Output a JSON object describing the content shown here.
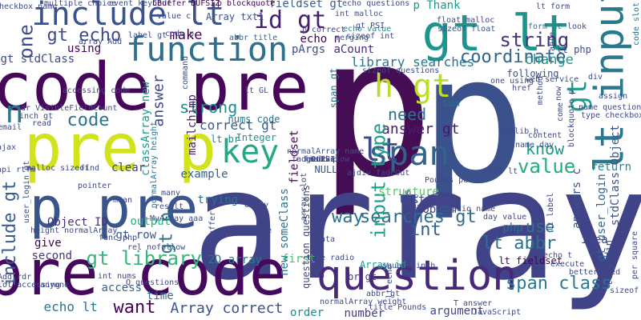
{
  "words": [
    {
      "text": "p",
      "color": "#450d54"
    },
    {
      "text": "p",
      "color": "#3b518b"
    },
    {
      "text": "array",
      "color": "#404387"
    },
    {
      "text": "code pre",
      "color": "#46075a"
    },
    {
      "text": "pre code",
      "color": "#46085c"
    },
    {
      "text": "pre p",
      "color": "#d2e21b"
    },
    {
      "text": "p pre",
      "color": "#3a548c"
    },
    {
      "text": "question",
      "color": "#482979"
    },
    {
      "text": "include lt",
      "color": "#3b528b"
    },
    {
      "text": "gt lt",
      "color": "#1f948c"
    },
    {
      "text": "lt input",
      "color": "#2a788e"
    },
    {
      "text": "span",
      "color": "#33628d"
    },
    {
      "text": "function",
      "color": "#2d718e"
    },
    {
      "text": "key",
      "color": "#22a884"
    },
    {
      "text": "lt",
      "color": "#3e4a89"
    },
    {
      "text": "n",
      "color": "#2a768e"
    },
    {
      "text": "h gt",
      "color": "#b8de29"
    },
    {
      "text": "id gt",
      "color": "#481f70"
    },
    {
      "text": "string",
      "color": "#46327e"
    },
    {
      "text": "coordinate",
      "color": "#31668e"
    },
    {
      "text": "gt echo",
      "color": "#3e4a89"
    },
    {
      "text": "gt",
      "color": "#1e9b8a"
    },
    {
      "text": "code",
      "color": "#2c728e"
    },
    {
      "text": "answer gt",
      "color": "#481a6c"
    },
    {
      "text": "value",
      "color": "#25ab82"
    },
    {
      "text": "searches gt",
      "color": "#2e6e8e"
    },
    {
      "text": "lt abbr",
      "color": "#2c718e"
    },
    {
      "text": "span class",
      "color": "#287c8e"
    },
    {
      "text": "gt library",
      "color": "#35b779"
    },
    {
      "text": "input type",
      "color": "#1f9e89"
    },
    {
      "text": "want",
      "color": "#440154"
    },
    {
      "text": "way",
      "color": "#2d708e"
    },
    {
      "text": "int",
      "color": "#33638d"
    },
    {
      "text": "use",
      "color": "#2b758e"
    },
    {
      "text": "know",
      "color": "#1f978b"
    },
    {
      "text": "need",
      "color": "#2c728e"
    },
    {
      "text": "change",
      "color": "#1f968b"
    },
    {
      "text": "make",
      "color": "#440154"
    },
    {
      "text": "one",
      "color": "#3e4c8a"
    },
    {
      "text": "strong",
      "color": "#228c8d"
    },
    {
      "text": "correct gt",
      "color": "#365c8d"
    },
    {
      "text": "Array correct",
      "color": "#3b528b"
    },
    {
      "text": "p Thank",
      "color": "#1e9b8a"
    },
    {
      "text": "echo lt",
      "color": "#2a768e"
    },
    {
      "text": "gt row",
      "color": "#3a548c"
    },
    {
      "text": "gt n",
      "color": "#2d708e"
    },
    {
      "text": "include gt",
      "color": "#365d8d"
    },
    {
      "text": "library searches",
      "color": "#2b758e"
    },
    {
      "text": "Object ID",
      "color": "#46307e"
    },
    {
      "text": "output",
      "color": "#29af7f"
    },
    {
      "text": "php",
      "color": "#2d718e"
    },
    {
      "text": "structure",
      "color": "#56c667"
    },
    {
      "text": "listindex",
      "color": "#3e4a89"
    },
    {
      "text": "problem",
      "color": "#414487"
    },
    {
      "text": "following",
      "color": "#3a538b"
    },
    {
      "text": "using",
      "color": "#440154"
    },
    {
      "text": "example",
      "color": "#33628d"
    },
    {
      "text": "trying",
      "color": "#2d708e"
    },
    {
      "text": "time",
      "color": "#2c728e"
    },
    {
      "text": "second",
      "color": "#46337f"
    },
    {
      "text": "give",
      "color": "#440154"
    },
    {
      "text": "first",
      "color": "#4ac16d"
    },
    {
      "text": "return",
      "color": "#24868e"
    },
    {
      "text": "idea",
      "color": "#3e4989"
    },
    {
      "text": "sum",
      "color": "#2e6e8e"
    },
    {
      "text": "access",
      "color": "#355f8d"
    },
    {
      "text": "argument",
      "color": "#3f4788"
    },
    {
      "text": "clear",
      "color": "#453882"
    },
    {
      "text": "order",
      "color": "#238a8d"
    },
    {
      "text": "number",
      "color": "#443b84"
    },
    {
      "text": "answer",
      "color": "#3f4889"
    },
    {
      "text": "mailchimp",
      "color": "#481a6c"
    },
    {
      "text": "gt stdClass",
      "color": "#3e4989"
    },
    {
      "text": "echo n",
      "color": "#440154"
    },
    {
      "text": "pArgs",
      "color": "#3e4c8a"
    },
    {
      "text": "aCount",
      "color": "#472d7b"
    },
    {
      "text": "fieldset gt",
      "color": "#355f8d"
    },
    {
      "text": "lt php",
      "color": "#3e4a89"
    },
    {
      "text": "lt br",
      "color": "#24878e"
    },
    {
      "text": "span gt",
      "color": "#2d718e"
    },
    {
      "text": "lt fieldset",
      "color": "#440154"
    },
    {
      "text": "br gt",
      "color": "#453882"
    },
    {
      "text": "Array id",
      "color": "#1e9b8a"
    },
    {
      "text": "strlen pArgs",
      "color": "#3f4889"
    },
    {
      "text": "gt user_login",
      "color": "#32658e"
    },
    {
      "text": "answers c",
      "color": "#3b528b"
    },
    {
      "text": "stdClass Object",
      "color": "#3b528b"
    },
    {
      "text": "2D array",
      "color": "#2a788e"
    },
    {
      "text": "lt stdin",
      "color": "#3e4989"
    },
    {
      "text": "new someClass",
      "color": "#2c728e"
    },
    {
      "text": "question questions",
      "color": "#414487"
    },
    {
      "text": "classArray new",
      "color": "#1f988b"
    },
    {
      "text": "fieldset",
      "color": "#440154"
    },
    {
      "text": "nums code",
      "color": "#2c728e"
    },
    {
      "text": "NULL",
      "color": "#3b528b"
    },
    {
      "text": "Integer",
      "color": "#20928c"
    },
    {
      "text": "multiple choice",
      "color": "#3e4989"
    },
    {
      "text": "event keyCode",
      "color": "#3b528b"
    },
    {
      "text": "bBuffer BUFSIZ",
      "color": "#440154"
    },
    {
      "text": "Array txt1",
      "color": "#3b528b"
    },
    {
      "text": "int malloc",
      "color": "#3b528b"
    },
    {
      "text": "echo questions",
      "color": "#3e4a89"
    },
    {
      "text": "float malloc",
      "color": "#3e4a89"
    },
    {
      "text": "sizeof float",
      "color": "#3b528b"
    },
    {
      "text": "echo value",
      "color": "#238a8d"
    },
    {
      "text": "sizeof int",
      "color": "#3e4989"
    },
    {
      "text": "form gt",
      "color": "#2c728e"
    },
    {
      "text": "lt form",
      "color": "#3e4989"
    },
    {
      "text": "code slot",
      "color": "#2c728e"
    },
    {
      "text": "checkbox name",
      "color": "#3e4989"
    },
    {
      "text": "abbr title",
      "color": "#355f8d"
    },
    {
      "text": "merging",
      "color": "#3b528b"
    },
    {
      "text": "gt PSI",
      "color": "#3e4989"
    },
    {
      "text": "p correct",
      "color": "#3e4989"
    },
    {
      "text": "value c",
      "color": "#3e4989"
    },
    {
      "text": "code p",
      "color": "#3e4989"
    },
    {
      "text": "label gt",
      "color": "#3e4989"
    },
    {
      "text": "array Add",
      "color": "#3e4989"
    },
    {
      "text": "p blockquote",
      "color": "#440154"
    },
    {
      "text": "normalArray height",
      "color": "#2c728e"
    },
    {
      "text": "normalArray name",
      "color": "#3b528b"
    },
    {
      "text": "sizeof questions",
      "color": "#3e4989"
    },
    {
      "text": "one using",
      "color": "#3e4989"
    },
    {
      "text": "web service",
      "color": "#3e4989"
    },
    {
      "text": "lt GL",
      "color": "#3e4989"
    },
    {
      "text": "rdr VisibleFieldCount",
      "color": "#3e4989"
    },
    {
      "text": "inch gt",
      "color": "#3e4989"
    },
    {
      "text": "read",
      "color": "#3e4989"
    },
    {
      "text": "email",
      "color": "#3e4989"
    },
    {
      "text": "ajax",
      "color": "#3e4989"
    },
    {
      "text": "api rtfm",
      "color": "#3e4989"
    },
    {
      "text": "malloc sizeof",
      "color": "#3e4989"
    },
    {
      "text": "find",
      "color": "#3e4989"
    },
    {
      "text": "pointer",
      "color": "#3e4989"
    },
    {
      "text": "user_login gt",
      "color": "#3e4989"
    },
    {
      "text": "rel nofollow",
      "color": "#3e4989"
    },
    {
      "text": "int nums",
      "color": "#3e4989"
    },
    {
      "text": "Q questions",
      "color": "#3e4989"
    },
    {
      "text": "Add rdr",
      "color": "#3e4989"
    },
    {
      "text": "slot accessing",
      "color": "#3e4989"
    },
    {
      "text": "anyone",
      "color": "#3e4989"
    },
    {
      "text": "height normalArray",
      "color": "#3e4989"
    },
    {
      "text": "mean",
      "color": "#3e4989"
    },
    {
      "text": "MyArray aaa",
      "color": "#3e4989"
    },
    {
      "text": "result",
      "color": "#3e4989"
    },
    {
      "text": "many",
      "color": "#3e4989"
    },
    {
      "text": "buffer",
      "color": "#3e4989"
    },
    {
      "text": "compile",
      "color": "#3e4989"
    },
    {
      "text": "data",
      "color": "#3e4989"
    },
    {
      "text": "type radio",
      "color": "#3e4989"
    },
    {
      "text": "array slot",
      "color": "#3e4989"
    },
    {
      "text": "abbr gt",
      "color": "#3e4989"
    },
    {
      "text": "normalArray weight",
      "color": "#3e4989"
    },
    {
      "text": "title Pounds",
      "color": "#3e4989"
    },
    {
      "text": "JavaScript",
      "color": "#3e4989"
    },
    {
      "text": "T answer",
      "color": "#3e4989"
    },
    {
      "text": "echo t",
      "color": "#3e4989"
    },
    {
      "text": "execute",
      "color": "#3e4989"
    },
    {
      "text": "better",
      "color": "#3e4989"
    },
    {
      "text": "tried",
      "color": "#3e4989"
    },
    {
      "text": "per square",
      "color": "#3e4989"
    },
    {
      "text": "lt sizeof",
      "color": "#3e4989"
    },
    {
      "text": "stdlib h",
      "color": "#3e4989"
    },
    {
      "text": "name day",
      "color": "#3e4989"
    },
    {
      "text": "name question",
      "color": "#3e4989"
    },
    {
      "text": "type checkbox",
      "color": "#3e4989"
    },
    {
      "text": "blockquote p",
      "color": "#3e4989"
    },
    {
      "text": "ajdiv fadeOut",
      "color": "#3e4989"
    },
    {
      "text": "square inch",
      "color": "#3e4989"
    },
    {
      "text": "Pounds per",
      "color": "#3e4989"
    },
    {
      "text": "PSI lt",
      "color": "#3e4989"
    },
    {
      "text": "day value",
      "color": "#3e4989"
    },
    {
      "text": "radio name",
      "color": "#3e4989"
    },
    {
      "text": "func php",
      "color": "#3e4989"
    },
    {
      "text": "command",
      "color": "#3e4989"
    },
    {
      "text": "method",
      "color": "#3e4989"
    },
    {
      "text": "div",
      "color": "#3e4989"
    },
    {
      "text": "now",
      "color": "#3e4989"
    },
    {
      "text": "assign",
      "color": "#3e4989"
    },
    {
      "text": "accessing code",
      "color": "#3e4989"
    },
    {
      "text": "content",
      "color": "#3e4989"
    },
    {
      "text": "empty",
      "color": "#3e4989"
    },
    {
      "text": "Perl",
      "color": "#3e4989"
    },
    {
      "text": "lt echo",
      "color": "#3e4989"
    },
    {
      "text": "look",
      "color": "#3e4989"
    },
    {
      "text": "href",
      "color": "#3e4989"
    },
    {
      "text": "able",
      "color": "#3e4989"
    },
    {
      "text": "come",
      "color": "#3e4989"
    },
    {
      "text": "lt label",
      "color": "#3e4989"
    },
    {
      "text": "field p",
      "color": "#3e4989"
    },
    {
      "text": "work",
      "color": "#3e4989"
    },
    {
      "text": "gt PSI",
      "color": "#3e4989"
    },
    {
      "text": "fadeOut slow",
      "color": "#3e4989"
    },
    {
      "text": "active",
      "color": "#3e4989"
    }
  ]
}
